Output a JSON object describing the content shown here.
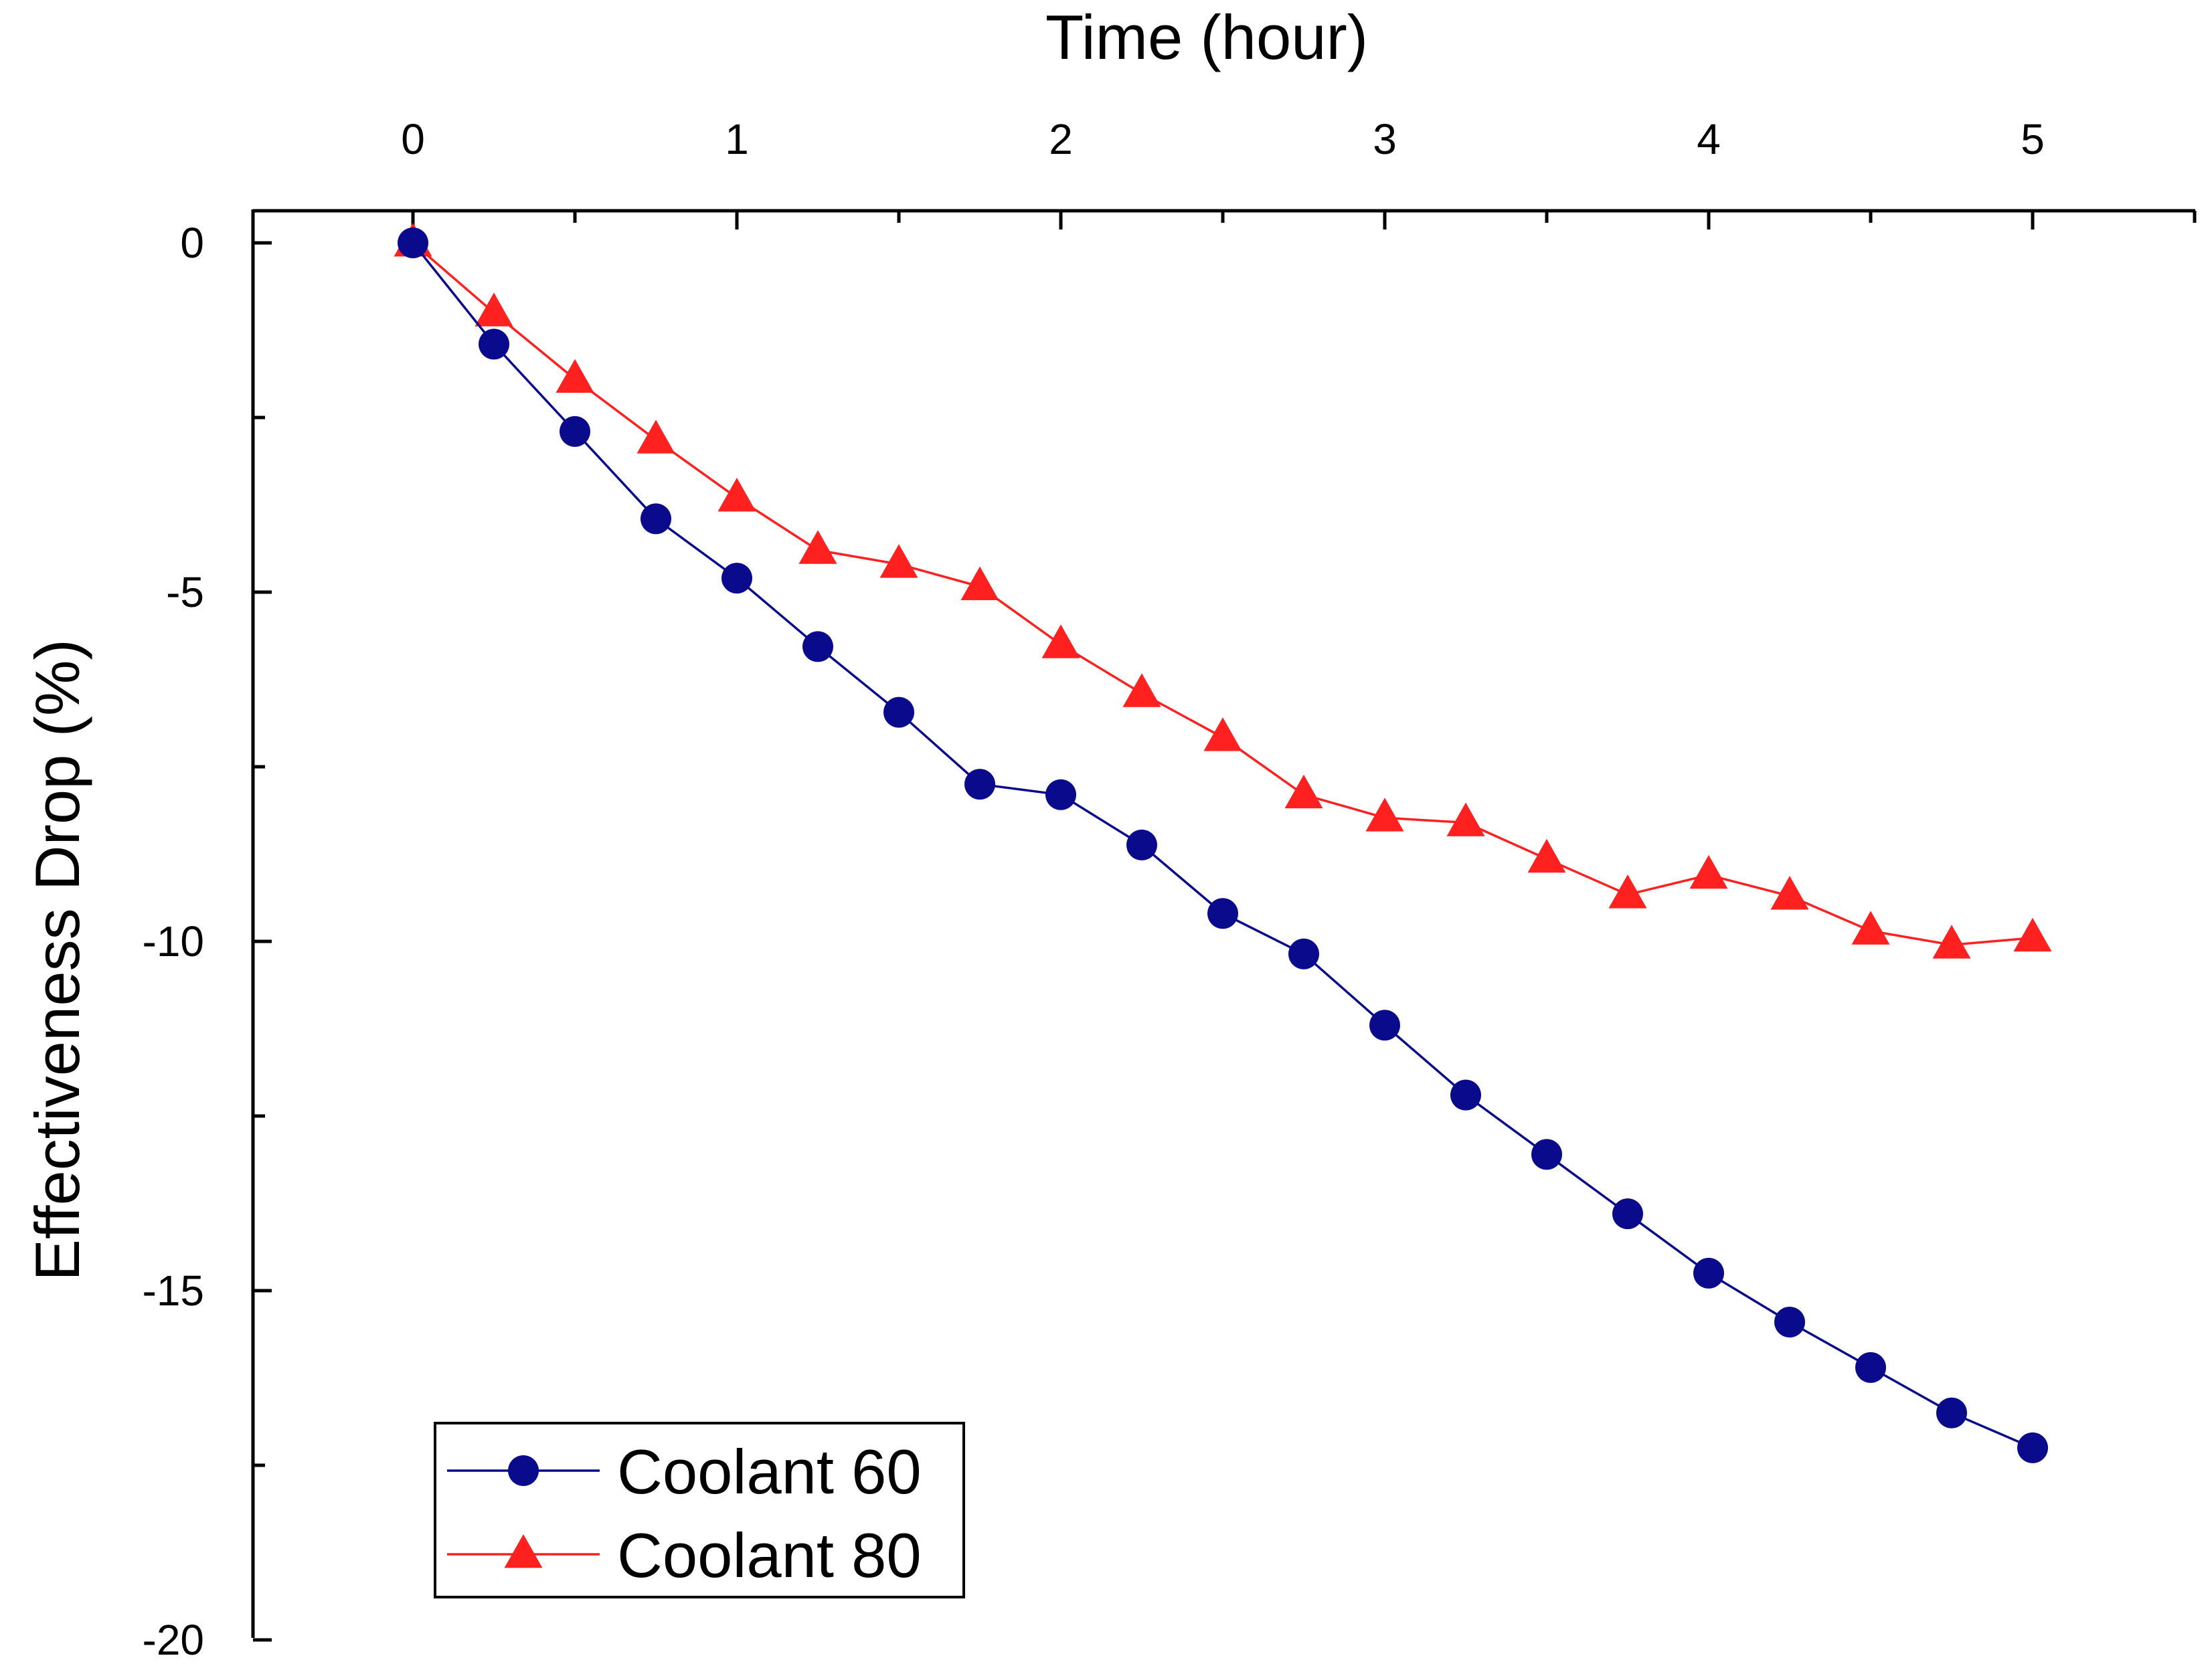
{
  "chart_data": {
    "type": "line",
    "title": "",
    "xlabel": "Time (hour)",
    "ylabel": "Effectiveness Drop (%)",
    "xlim": [
      -0.5,
      5.5
    ],
    "ylim": [
      -20,
      0.5
    ],
    "x_ticks": [
      0,
      1,
      2,
      3,
      4,
      5
    ],
    "x_tick_labels": [
      "0",
      "1",
      "2",
      "3",
      "4",
      "5"
    ],
    "y_ticks": [
      0,
      -5,
      -10,
      -15,
      -20
    ],
    "y_tick_labels": [
      "0",
      "-5",
      "-10",
      "-15",
      "-20"
    ],
    "x_axis_position": "top",
    "grid": false,
    "legend_position": "bottom-left",
    "x": [
      0,
      0.25,
      0.5,
      0.75,
      1,
      1.25,
      1.5,
      1.75,
      2,
      2.25,
      2.5,
      2.75,
      3,
      3.25,
      3.5,
      3.75,
      4,
      4.25,
      4.5,
      4.75,
      5
    ],
    "series": [
      {
        "name": "Coolant 60",
        "marker": "circle",
        "color": "#0a0a8c",
        "values": [
          0,
          -1.45,
          -2.7,
          -3.95,
          -4.8,
          -5.78,
          -6.72,
          -7.75,
          -7.9,
          -8.62,
          -9.6,
          -10.18,
          -11.2,
          -12.2,
          -13.05,
          -13.9,
          -14.75,
          -15.45,
          -16.1,
          -16.75,
          -17.25
        ]
      },
      {
        "name": "Coolant 80",
        "marker": "triangle",
        "color": "#ff2020",
        "values": [
          0,
          -1.0,
          -1.95,
          -2.82,
          -3.65,
          -4.4,
          -4.6,
          -4.92,
          -5.75,
          -6.45,
          -7.08,
          -7.9,
          -8.23,
          -8.3,
          -8.82,
          -9.33,
          -9.05,
          -9.35,
          -9.85,
          -10.05,
          -9.95
        ]
      }
    ]
  }
}
